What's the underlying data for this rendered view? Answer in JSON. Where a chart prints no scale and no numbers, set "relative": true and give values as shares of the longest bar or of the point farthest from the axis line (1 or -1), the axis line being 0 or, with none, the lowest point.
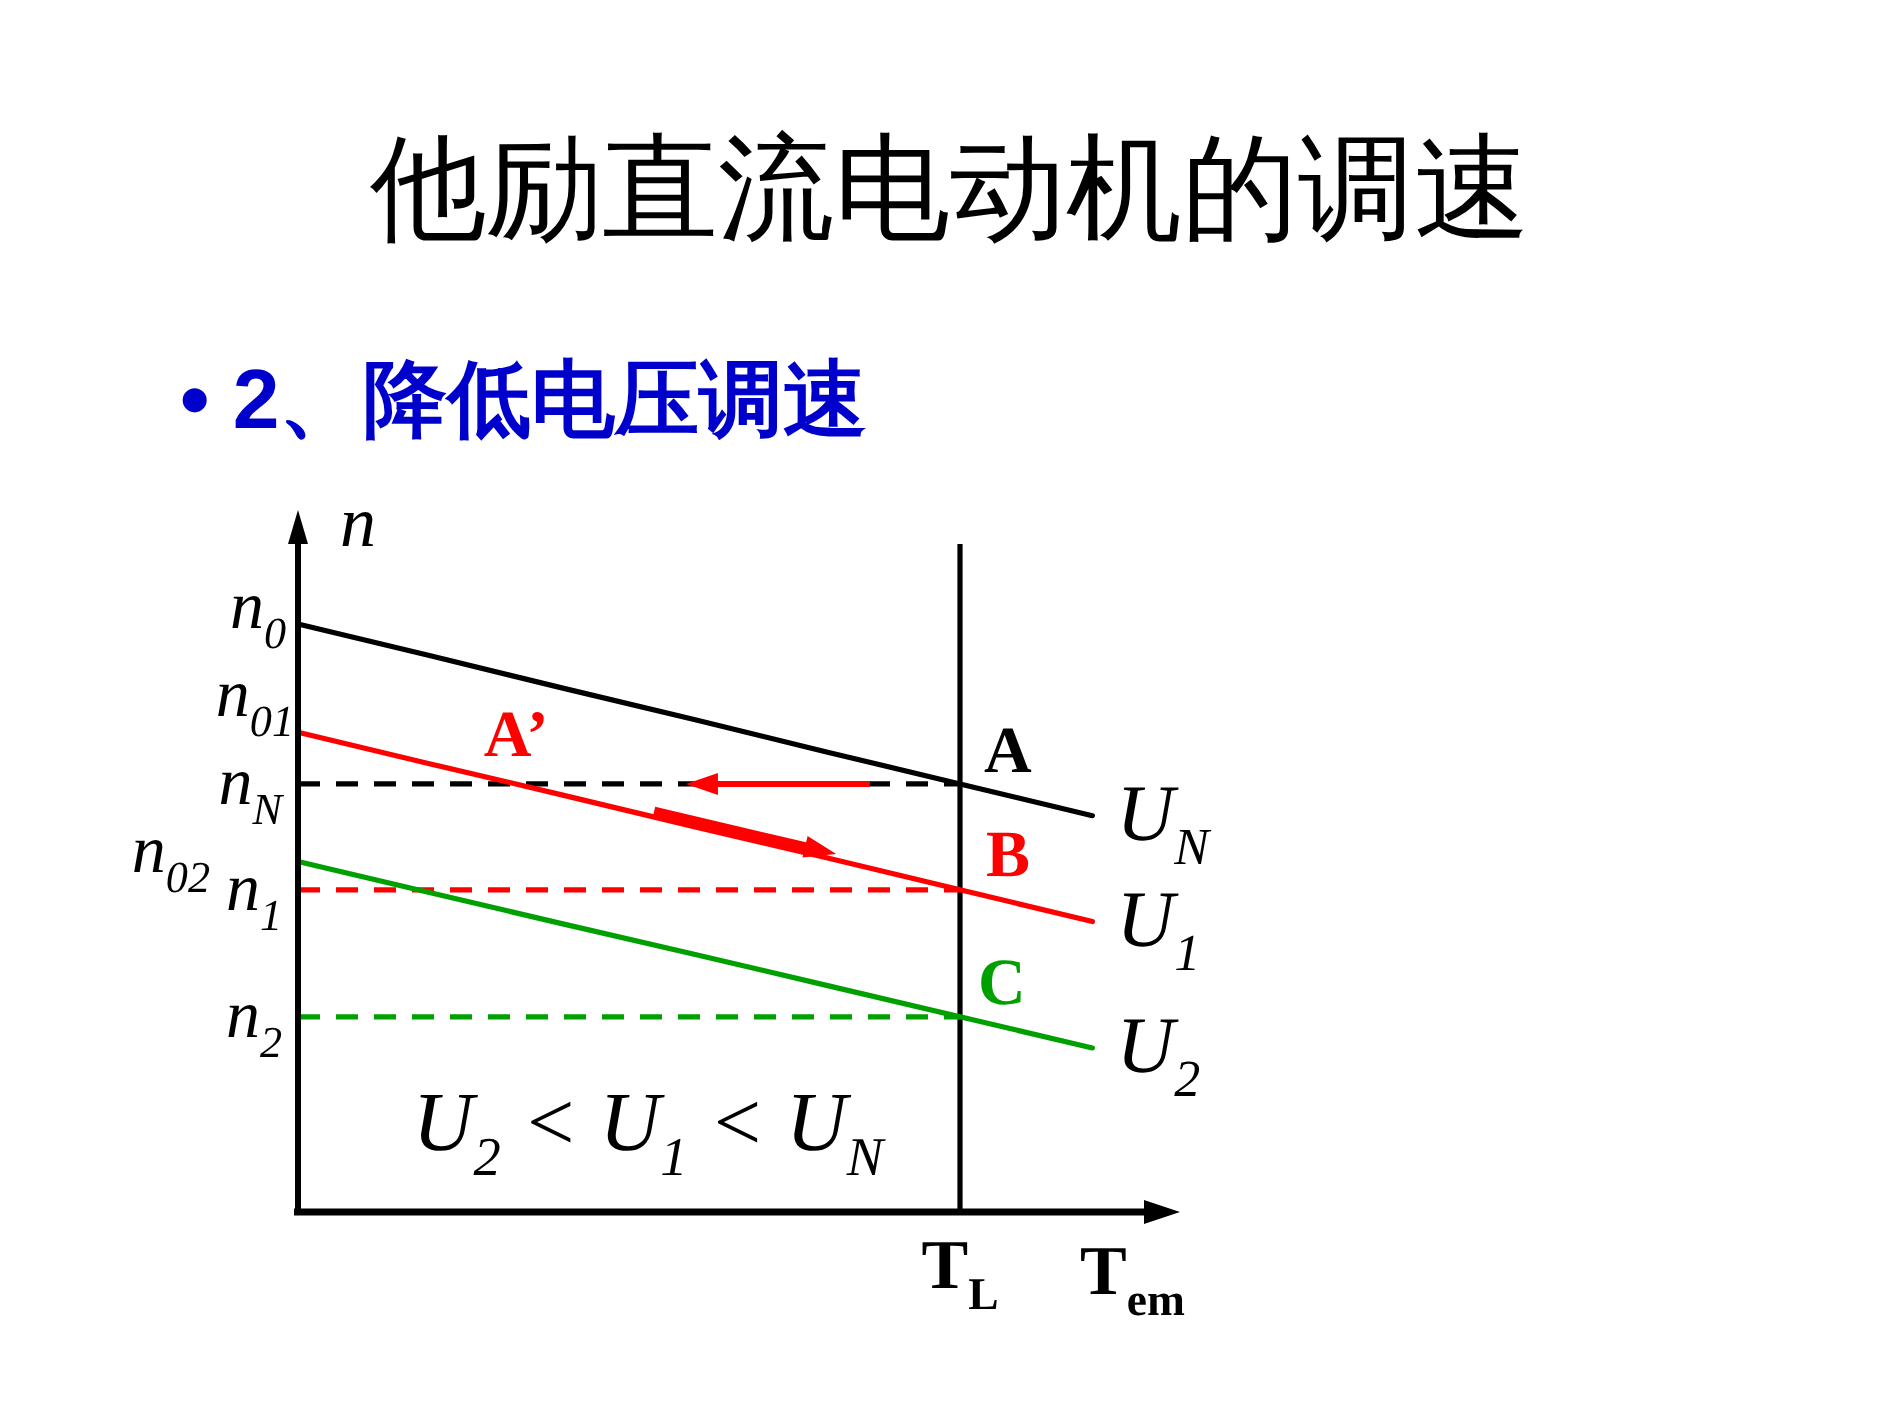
{
  "chart_data": {
    "type": "line",
    "title": "他励直流电动机的调速",
    "subtitle": "• 2、降低电压调速",
    "xlabel": "T$_{em}$",
    "ylabel": "n",
    "relative": true,
    "categories": [
      null,
      null,
      null,
      null,
      null,
      null,
      null
    ],
    "series": [
      {
        "name": "U$_{N}$",
        "color": "#000000",
        "values": [
          1,
          0.946,
          0.891,
          0.837,
          0.782,
          0.728,
          0.674
        ]
      },
      {
        "name": "U$_{1}$",
        "color": "#ff0000",
        "values": [
          0.816,
          0.762,
          0.709,
          0.655,
          0.602,
          0.548,
          0.494
        ]
      },
      {
        "name": "U$_{2}$",
        "color": "#00a000",
        "values": [
          0.596,
          0.543,
          0.49,
          0.438,
          0.385,
          0.332,
          0.279
        ]
      }
    ],
    "ref_lines": [
      {
        "axis": "y",
        "value": 0.728,
        "label": "n$_{N}$",
        "color": "#000000",
        "line_style": "dashed"
      },
      {
        "axis": "y",
        "value": 0.548,
        "label": "n$_{1}$",
        "color": "#ff0000",
        "line_style": "dashed"
      },
      {
        "axis": "y",
        "value": 0.332,
        "label": "n$_{2}$",
        "color": "#00a000",
        "line_style": "dashed"
      }
    ],
    "annotations": [
      "n$_{0}$",
      "n$_{01}$",
      "n$_{02}$",
      "A",
      "B",
      "C",
      "A’",
      "U$_{2}$ < U$_{1}$ < U$_{N}$",
      "T$_{L}$"
    ]
  }
}
